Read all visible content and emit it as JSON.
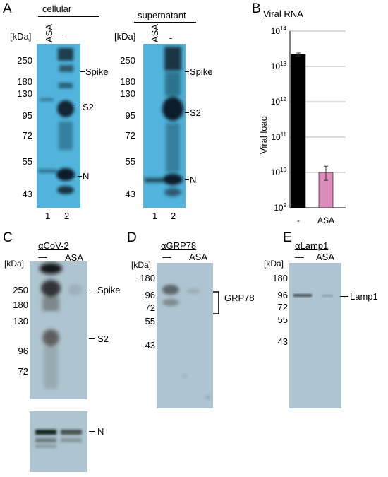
{
  "panelA": {
    "label": "A",
    "unit": "[kDa]",
    "cellular": {
      "title": "cellular",
      "lanes": [
        "ASA",
        "-"
      ],
      "lane_numbers": [
        "1",
        "2"
      ],
      "markers": [
        "250",
        "180",
        "130",
        "95",
        "72",
        "55",
        "43"
      ],
      "bands": [
        "Spike",
        "S2",
        "N"
      ]
    },
    "supernatant": {
      "title": "supernatant",
      "lanes": [
        "ASA",
        "-"
      ],
      "lane_numbers": [
        "1",
        "2"
      ],
      "markers": [
        "250",
        "180",
        "130",
        "95",
        "72",
        "55",
        "43"
      ],
      "bands": [
        "Spike",
        "S2",
        "N"
      ]
    }
  },
  "panelB": {
    "label": "B",
    "title": "Viral RNA",
    "chart_data": {
      "type": "bar",
      "title": "Viral RNA",
      "ylabel": "Viral load",
      "xlabel": "",
      "yscale": "log",
      "ylim": [
        1000000000,
        100000000000000
      ],
      "yticks": [
        "10^9",
        "10^10",
        "10^11",
        "10^12",
        "10^13",
        "10^14"
      ],
      "grid": "horizontal",
      "categories": [
        "-",
        "ASA"
      ],
      "values": [
        22000000000000,
        10000000000
      ],
      "errors_high": [
        24000000000000,
        15000000000
      ],
      "errors_low": [
        20000000000000,
        6000000000
      ],
      "colors": [
        "#000000",
        "#dc8cba"
      ]
    }
  },
  "panelC": {
    "label": "C",
    "antibody": "αCoV-2",
    "unit": "[kDa]",
    "lanes": [
      "—",
      "ASA"
    ],
    "markers": [
      "250",
      "180",
      "130",
      "96",
      "72"
    ],
    "bands": [
      "Spike",
      "S2",
      "N"
    ]
  },
  "panelD": {
    "label": "D",
    "antibody": "αGRP78",
    "unit": "[kDa]",
    "lanes": [
      "—",
      "ASA"
    ],
    "markers": [
      "180",
      "96",
      "72",
      "55",
      "43"
    ],
    "band": "GRP78"
  },
  "panelE": {
    "label": "E",
    "antibody": "αLamp1",
    "unit": "[kDa]",
    "lanes": [
      "—",
      "ASA"
    ],
    "markers": [
      "180",
      "96",
      "72",
      "55",
      "43"
    ],
    "band": "Lamp1"
  }
}
